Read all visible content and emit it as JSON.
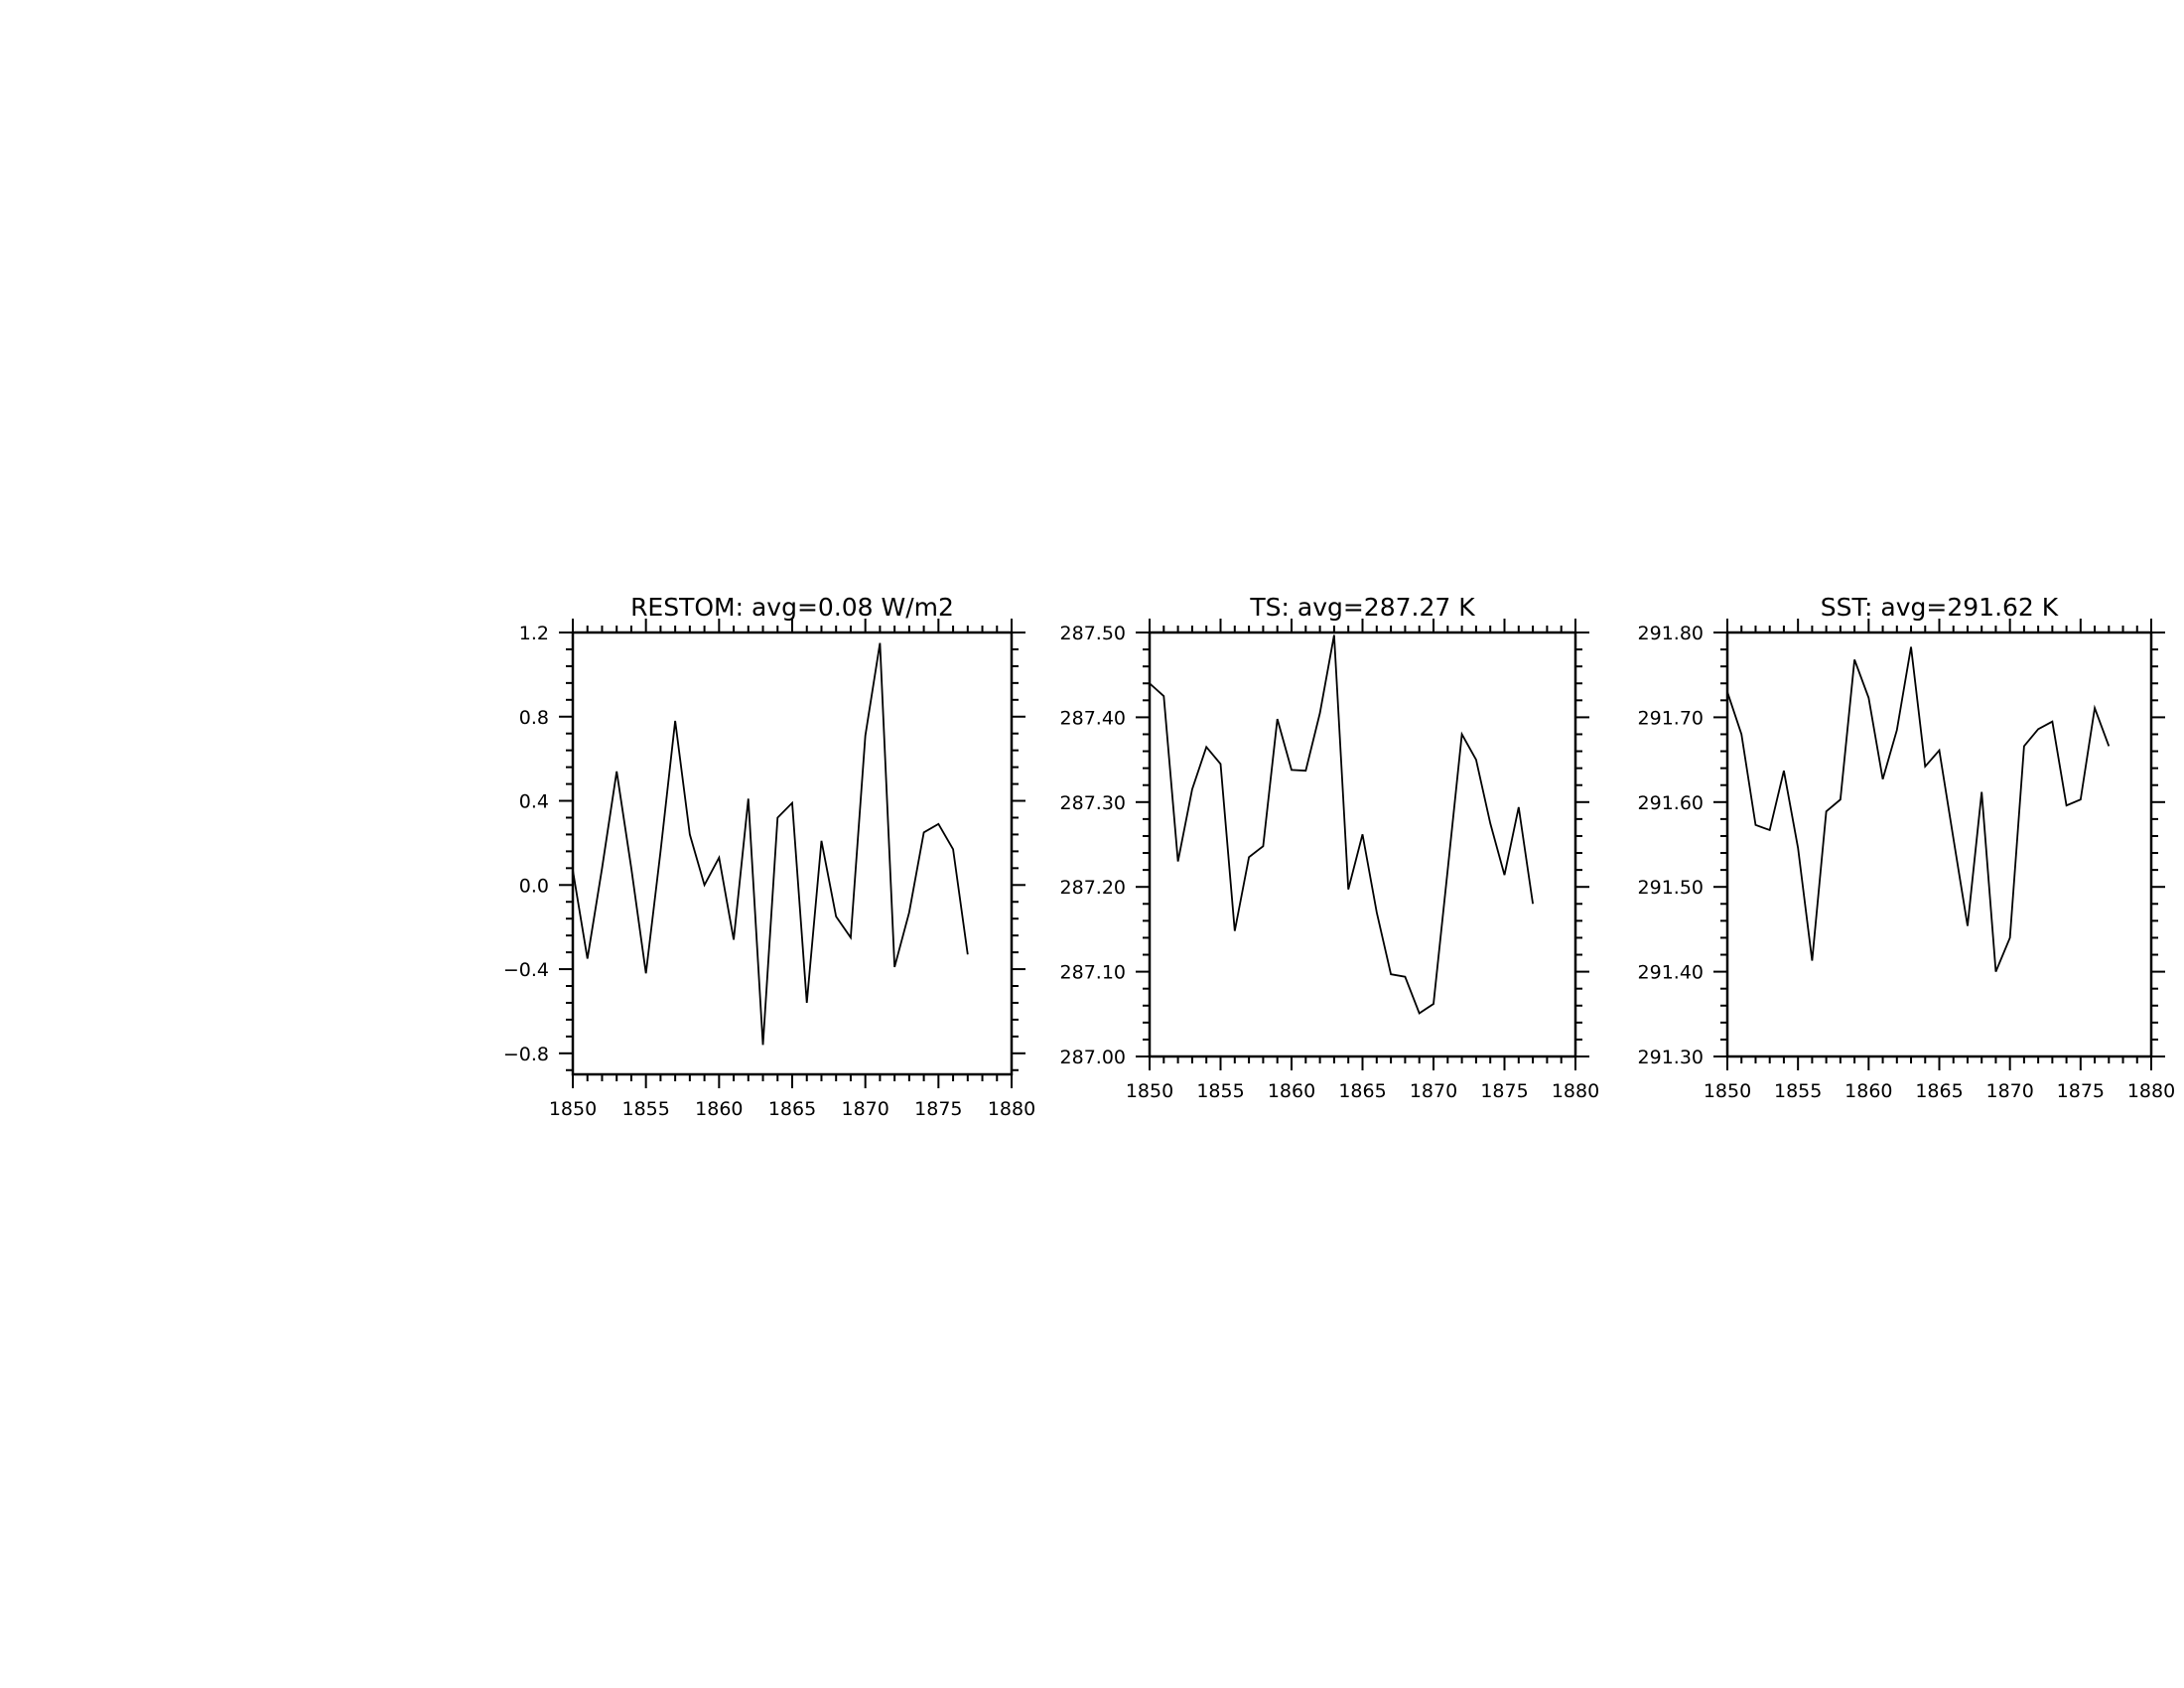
{
  "chart_data": [
    {
      "type": "line",
      "title": "RESTOM: avg=0.08 W/m2",
      "xlabel": "",
      "ylabel": "",
      "xlim": [
        1850,
        1880
      ],
      "ylim": [
        -0.9,
        1.2
      ],
      "xticks": [
        1850,
        1855,
        1860,
        1865,
        1870,
        1875,
        1880
      ],
      "xtick_labels": [
        "1850",
        "1855",
        "1860",
        "1865",
        "1870",
        "1875",
        "1880"
      ],
      "yticks": [
        -0.8,
        -0.4,
        0.0,
        0.4,
        0.8,
        1.2
      ],
      "ytick_labels": [
        "−0.8",
        "−0.4",
        "0.0",
        "0.4",
        "0.8",
        "1.2"
      ],
      "grid": false,
      "series": [
        {
          "x": [
            1850,
            1851,
            1852,
            1853,
            1854,
            1855,
            1856,
            1857,
            1858,
            1859,
            1860,
            1861,
            1862,
            1863,
            1864,
            1865,
            1866,
            1867,
            1868,
            1869,
            1870,
            1871,
            1872,
            1873,
            1874,
            1875,
            1876,
            1877
          ],
          "values": [
            0.07,
            -0.35,
            0.08,
            0.54,
            0.08,
            -0.42,
            0.16,
            0.78,
            0.24,
            0.0,
            0.13,
            -0.26,
            0.41,
            -0.76,
            0.32,
            0.39,
            -0.56,
            0.21,
            -0.15,
            -0.25,
            0.71,
            1.15,
            -0.39,
            -0.13,
            0.25,
            0.29,
            0.17,
            -0.33
          ]
        }
      ]
    },
    {
      "type": "line",
      "title": "TS: avg=287.27 K",
      "xlabel": "",
      "ylabel": "",
      "xlim": [
        1850,
        1880
      ],
      "ylim": [
        287.0,
        287.5
      ],
      "xticks": [
        1850,
        1855,
        1860,
        1865,
        1870,
        1875,
        1880
      ],
      "xtick_labels": [
        "1850",
        "1855",
        "1860",
        "1865",
        "1870",
        "1875",
        "1880"
      ],
      "yticks": [
        287.0,
        287.1,
        287.2,
        287.3,
        287.4,
        287.5
      ],
      "ytick_labels": [
        "287.00",
        "287.10",
        "287.20",
        "287.30",
        "287.40",
        "287.50"
      ],
      "grid": false,
      "series": [
        {
          "x": [
            1850,
            1851,
            1852,
            1853,
            1854,
            1855,
            1856,
            1857,
            1858,
            1859,
            1860,
            1861,
            1862,
            1863,
            1864,
            1865,
            1866,
            1867,
            1868,
            1869,
            1870,
            1871,
            1872,
            1873,
            1874,
            1875,
            1876,
            1877
          ],
          "values": [
            287.44,
            287.425,
            287.23,
            287.315,
            287.365,
            287.345,
            287.148,
            287.235,
            287.248,
            287.398,
            287.338,
            287.337,
            287.405,
            287.497,
            287.197,
            287.262,
            287.17,
            287.097,
            287.094,
            287.051,
            287.062,
            287.22,
            287.38,
            287.35,
            287.275,
            287.214,
            287.294,
            287.18
          ]
        }
      ]
    },
    {
      "type": "line",
      "title": "SST: avg=291.62 K",
      "xlabel": "",
      "ylabel": "",
      "xlim": [
        1850,
        1880
      ],
      "ylim": [
        291.3,
        291.8
      ],
      "xticks": [
        1850,
        1855,
        1860,
        1865,
        1870,
        1875,
        1880
      ],
      "xtick_labels": [
        "1850",
        "1855",
        "1860",
        "1865",
        "1870",
        "1875",
        "1880"
      ],
      "yticks": [
        291.3,
        291.4,
        291.5,
        291.6,
        291.7,
        291.8
      ],
      "ytick_labels": [
        "291.30",
        "291.40",
        "291.50",
        "291.60",
        "291.70",
        "291.80"
      ],
      "grid": false,
      "series": [
        {
          "x": [
            1850,
            1851,
            1852,
            1853,
            1854,
            1855,
            1856,
            1857,
            1858,
            1859,
            1860,
            1861,
            1862,
            1863,
            1864,
            1865,
            1866,
            1867,
            1868,
            1869,
            1870,
            1871,
            1872,
            1873,
            1874,
            1875,
            1876,
            1877
          ],
          "values": [
            291.73,
            291.68,
            291.573,
            291.567,
            291.637,
            291.546,
            291.413,
            291.589,
            291.603,
            291.768,
            291.723,
            291.627,
            291.685,
            291.783,
            291.642,
            291.661,
            291.557,
            291.454,
            291.612,
            291.4,
            291.44,
            291.666,
            291.686,
            291.695,
            291.596,
            291.603,
            291.711,
            291.666
          ]
        }
      ]
    }
  ]
}
